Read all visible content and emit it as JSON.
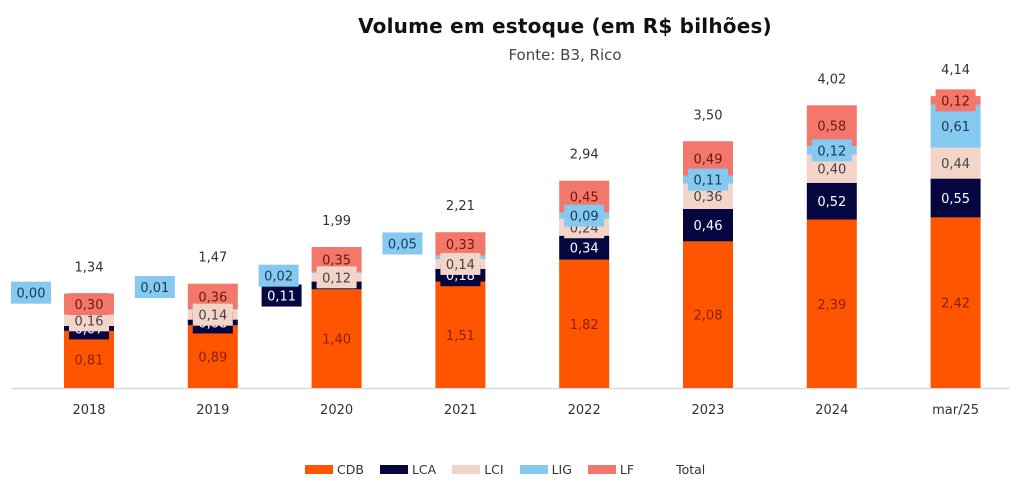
{
  "chart_data": {
    "type": "bar",
    "stacked": true,
    "title": "Volume em estoque (em R$ bilhões)",
    "subtitle": "Fonte: B3, Rico",
    "xlabel": "",
    "ylabel": "",
    "ylim": [
      0,
      4.6
    ],
    "grid": false,
    "legend_position": "bottom",
    "categories": [
      "2018",
      "2019",
      "2020",
      "2021",
      "2022",
      "2023",
      "2024",
      "mar/25"
    ],
    "series": [
      {
        "name": "CDB",
        "color": "#FF5500",
        "label_color": "#8a1f00",
        "values": [
          0.81,
          0.89,
          1.4,
          1.51,
          1.82,
          2.08,
          2.39,
          2.42
        ],
        "labels": [
          "0,81",
          "0,89",
          "1,40",
          "1,51",
          "1,82",
          "2,08",
          "2,39",
          "2,42"
        ]
      },
      {
        "name": "LCA",
        "color": "#05053F",
        "label_color": "#ffffff",
        "values": [
          0.07,
          0.08,
          0.11,
          0.18,
          0.34,
          0.46,
          0.52,
          0.55
        ],
        "labels": [
          "0,07",
          "0,08",
          "0,11",
          "0,18",
          "0,34",
          "0,46",
          "0,52",
          "0,55"
        ]
      },
      {
        "name": "LCI",
        "color": "#F2D4C9",
        "label_color": "#444444",
        "values": [
          0.16,
          0.14,
          0.12,
          0.14,
          0.24,
          0.36,
          0.4,
          0.44
        ],
        "labels": [
          "0,16",
          "0,14",
          "0,12",
          "0,14",
          "0,24",
          "0,36",
          "0,40",
          "0,44"
        ]
      },
      {
        "name": "LIG",
        "color": "#85C8F0",
        "label_color": "#1b3a55",
        "values": [
          0.0,
          0.01,
          0.02,
          0.05,
          0.09,
          0.11,
          0.12,
          0.61
        ],
        "labels": [
          "0,00",
          "0,01",
          "0,02",
          "0,05",
          "0,09",
          "0,11",
          "0,12",
          "0,61"
        ]
      },
      {
        "name": "LF",
        "color": "#F3776A",
        "label_color": "#6a1a12",
        "values": [
          0.3,
          0.36,
          0.35,
          0.33,
          0.45,
          0.49,
          0.58,
          0.12
        ],
        "labels": [
          "0,30",
          "0,36",
          "0,35",
          "0,33",
          "0,45",
          "0,49",
          "0,58",
          "0,12"
        ]
      }
    ],
    "totals": [
      1.34,
      1.47,
      1.99,
      2.21,
      2.94,
      3.5,
      4.02,
      4.14
    ],
    "total_labels": [
      "1,34",
      "1,47",
      "1,99",
      "2,21",
      "2,94",
      "3,50",
      "4,02",
      "4,14"
    ],
    "legend": [
      "CDB",
      "LCA",
      "LCI",
      "LIG",
      "LF",
      "Total"
    ]
  }
}
